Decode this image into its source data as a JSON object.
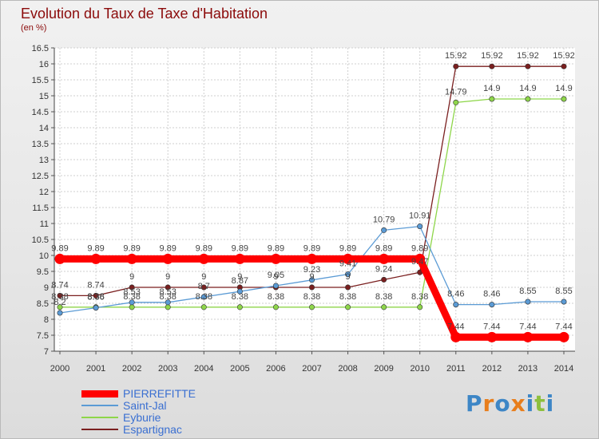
{
  "header": {
    "title": "Evolution du Taux de Taxe d'Habitation",
    "unit": "(en %)"
  },
  "chart_data": {
    "type": "line",
    "title": "Evolution du Taux de Taxe d'Habitation",
    "ylabel": "(en %)",
    "xlabel": "",
    "ylim": [
      7,
      16.5
    ],
    "yticks": [
      "7",
      "7.5",
      "8",
      "8.5",
      "9",
      "9.5",
      "10",
      "10.5",
      "11",
      "11.5",
      "12",
      "12.5",
      "13",
      "13.5",
      "14",
      "14.5",
      "15",
      "15.5",
      "16",
      "16.5"
    ],
    "x": [
      "2000",
      "2001",
      "2002",
      "2003",
      "2004",
      "2005",
      "2006",
      "2007",
      "2008",
      "2009",
      "2010",
      "2011",
      "2012",
      "2013",
      "2014"
    ],
    "grid": true,
    "series": [
      {
        "name": "PIERREFITTE",
        "color": "#ff0000",
        "values": [
          9.89,
          9.89,
          9.89,
          9.89,
          9.89,
          9.89,
          9.89,
          9.89,
          9.89,
          9.89,
          9.89,
          7.44,
          7.44,
          7.44,
          7.44
        ],
        "labels": [
          "9.89",
          "9.89",
          "9.89",
          "9.89",
          "9.89",
          "9.89",
          "9.89",
          "9.89",
          "9.89",
          "9.89",
          "9.89",
          "7.44",
          "7.44",
          "7.44",
          "7.44"
        ]
      },
      {
        "name": "Saint-Jal",
        "color": "#5b9bd5",
        "values": [
          8.2,
          8.36,
          8.53,
          8.53,
          8.7,
          8.87,
          9.05,
          9.23,
          9.41,
          10.79,
          10.91,
          8.46,
          8.46,
          8.55,
          8.55
        ],
        "labels": [
          "8.2",
          "8.36",
          "8.53",
          "8.53",
          "8.7",
          "8.87",
          "9.05",
          "9.23",
          "9.41",
          "10.79",
          "10.91",
          "8.46",
          "8.46",
          "8.55",
          "8.55"
        ]
      },
      {
        "name": "Eyburie",
        "color": "#8ed64a",
        "values": [
          8.38,
          8.38,
          8.38,
          8.38,
          8.38,
          8.38,
          8.38,
          8.38,
          8.38,
          8.38,
          8.38,
          14.79,
          14.9,
          14.9,
          14.9
        ],
        "labels": [
          "8.38",
          "8.38",
          "8.38",
          "8.38",
          "8.38",
          "8.38",
          "8.38",
          "8.38",
          "8.38",
          "8.38",
          "8.38",
          "14.79",
          "14.9",
          "14.9",
          "14.9"
        ]
      },
      {
        "name": "Espartignac",
        "color": "#7a1f1f",
        "values": [
          8.74,
          8.74,
          9,
          9,
          9,
          9,
          9,
          9,
          9,
          9.24,
          9.47,
          15.92,
          15.92,
          15.92,
          15.92
        ],
        "labels": [
          "8.74",
          "8.74",
          "9",
          "9",
          "9",
          "9",
          "9",
          "9",
          "9",
          "9.24",
          "9.47",
          "15.92",
          "15.92",
          "15.92",
          "15.92"
        ]
      }
    ],
    "legend": {
      "position": "bottom-left",
      "entries": [
        "PIERREFITTE",
        "Saint-Jal",
        "Eyburie",
        "Espartignac"
      ]
    }
  },
  "brand": {
    "logo_text": "Proxiti",
    "logo_letters": [
      {
        "ch": "P",
        "color": "#3d86c6"
      },
      {
        "ch": "r",
        "color": "#e87e1c"
      },
      {
        "ch": "o",
        "color": "#3d86c6"
      },
      {
        "ch": "x",
        "color": "#e87e1c"
      },
      {
        "ch": "i",
        "color": "#3d86c6"
      },
      {
        "ch": "t",
        "color": "#8dbf3e"
      },
      {
        "ch": "i",
        "color": "#3d86c6"
      }
    ]
  }
}
